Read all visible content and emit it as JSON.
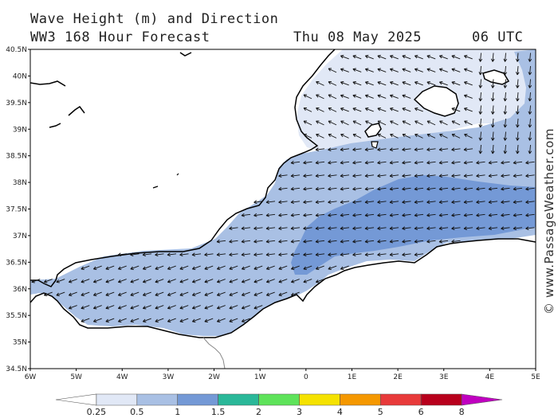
{
  "header": {
    "title": "Wave Height (m) and Direction",
    "subtitle": "WW3 168 Hour Forecast",
    "date": "Thu 08 May 2025",
    "time": "06 UTC"
  },
  "map": {
    "lat_labels": [
      "40.5N",
      "40N",
      "39.5N",
      "39N",
      "38.5N",
      "38N",
      "37.5N",
      "37N",
      "36.5N",
      "36N",
      "35.5N",
      "35N",
      "34.5N"
    ],
    "lon_labels": [
      "6W",
      "5W",
      "4W",
      "3W",
      "2W",
      "1W",
      "0",
      "1E",
      "2E",
      "3E",
      "4E",
      "5E"
    ],
    "credit": "© www.PassageWeather.com"
  },
  "legend": {
    "ticks": [
      "0.25",
      "0.5",
      "1",
      "1.5",
      "2",
      "3",
      "4",
      "5",
      "6",
      "8"
    ],
    "colors": [
      "#ffffff",
      "#e1e8f6",
      "#a9c0e4",
      "#7499d6",
      "#2ab899",
      "#5ee35a",
      "#f5e200",
      "#f59800",
      "#e83a3a",
      "#b8001c",
      "#c000c0"
    ]
  },
  "colors": {
    "band_0_5": "#e1e8f6",
    "band_1": "#a9c0e4",
    "band_1_5": "#7499d6",
    "coast": "#000000"
  }
}
